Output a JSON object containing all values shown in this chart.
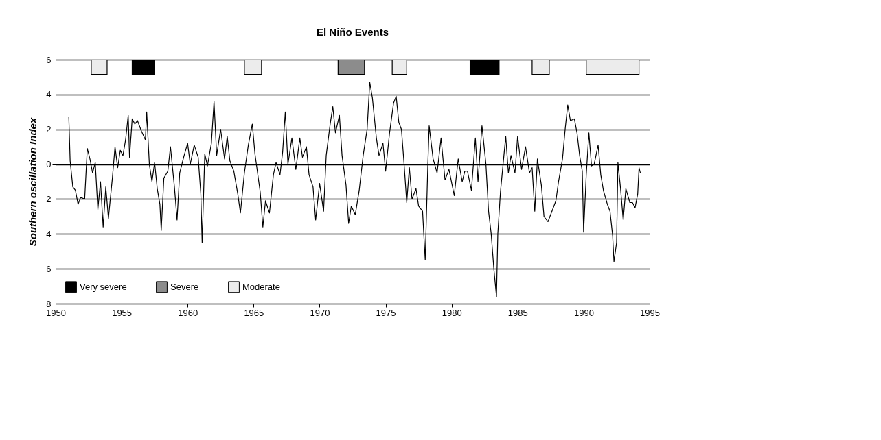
{
  "chart_data": {
    "type": "line",
    "title": "El Niño Events",
    "ylabel": "Southern oscillation Index",
    "xlim": [
      1950,
      1995
    ],
    "xticks": [
      1950,
      1955,
      1960,
      1965,
      1970,
      1975,
      1980,
      1985,
      1990,
      1995
    ],
    "ylim": [
      -8,
      6
    ],
    "yticks": [
      -8,
      -6,
      -4,
      -2,
      0,
      2,
      4,
      6
    ],
    "grid": "y",
    "legend": "bottom left",
    "marker": "none",
    "line_style": "solid",
    "series": [
      {
        "color": "#000000",
        "x": [
          1951.0,
          1951.1,
          1951.3,
          1951.5,
          1951.7,
          1951.9,
          1952.2,
          1952.4,
          1952.6,
          1952.8,
          1953.0,
          1953.2,
          1953.4,
          1953.6,
          1953.8,
          1954.0,
          1954.3,
          1954.5,
          1954.7,
          1954.9,
          1955.1,
          1955.3,
          1955.5,
          1955.6,
          1955.8,
          1956.0,
          1956.2,
          1956.5,
          1956.8,
          1956.9,
          1957.1,
          1957.3,
          1957.5,
          1957.7,
          1957.9,
          1958.0,
          1958.2,
          1958.5,
          1958.7,
          1959.0,
          1959.2,
          1959.4,
          1959.7,
          1960.0,
          1960.2,
          1960.5,
          1960.8,
          1961.0,
          1961.1,
          1961.3,
          1961.5,
          1961.8,
          1962.0,
          1962.2,
          1962.5,
          1962.8,
          1963.0,
          1963.2,
          1963.5,
          1963.8,
          1964.0,
          1964.3,
          1964.6,
          1964.9,
          1965.1,
          1965.3,
          1965.5,
          1965.7,
          1965.9,
          1966.2,
          1966.5,
          1966.7,
          1967.0,
          1967.2,
          1967.4,
          1967.6,
          1967.9,
          1968.2,
          1968.5,
          1968.7,
          1969.0,
          1969.2,
          1969.5,
          1969.7,
          1970.0,
          1970.3,
          1970.5,
          1970.8,
          1971.0,
          1971.2,
          1971.5,
          1971.7,
          1972.0,
          1972.2,
          1972.4,
          1972.7,
          1973.0,
          1973.3,
          1973.6,
          1973.8,
          1974.0,
          1974.3,
          1974.5,
          1974.8,
          1975.0,
          1975.3,
          1975.6,
          1975.8,
          1976.0,
          1976.2,
          1976.4,
          1976.6,
          1976.8,
          1977.0,
          1977.3,
          1977.5,
          1977.8,
          1978.0,
          1978.2,
          1978.3,
          1978.6,
          1978.9,
          1979.2,
          1979.5,
          1979.8,
          1980.2,
          1980.5,
          1980.8,
          1981.0,
          1981.2,
          1981.5,
          1981.8,
          1982.0,
          1982.3,
          1982.6,
          1982.8,
          1983.0,
          1983.2,
          1983.4,
          1983.5,
          1983.7,
          1983.9,
          1984.1,
          1984.3,
          1984.5,
          1984.8,
          1985.0,
          1985.3,
          1985.6,
          1985.9,
          1986.1,
          1986.3,
          1986.5,
          1986.8,
          1987.0,
          1987.3,
          1987.6,
          1987.9,
          1988.1,
          1988.4,
          1988.6,
          1988.8,
          1989.0,
          1989.3,
          1989.5,
          1989.7,
          1989.9,
          1990.0,
          1990.2,
          1990.4,
          1990.6,
          1990.8,
          1991.1,
          1991.3,
          1991.5,
          1991.8,
          1992.0,
          1992.2,
          1992.3,
          1992.5,
          1992.6,
          1992.8,
          1993.0,
          1993.2,
          1993.5,
          1993.7,
          1993.9,
          1994.1,
          1994.2,
          1994.3
        ],
        "values": [
          2.7,
          0.2,
          -1.3,
          -1.5,
          -2.3,
          -1.9,
          -2.0,
          0.9,
          0.3,
          -0.5,
          0.1,
          -2.6,
          -1.0,
          -3.6,
          -1.3,
          -3.1,
          -0.8,
          1.0,
          -0.2,
          0.8,
          0.5,
          1.4,
          2.8,
          0.4,
          2.6,
          2.3,
          2.5,
          1.9,
          1.4,
          3.0,
          0.0,
          -1.0,
          0.1,
          -1.4,
          -2.3,
          -3.8,
          -0.8,
          -0.4,
          1.0,
          -1.3,
          -3.2,
          -0.5,
          0.4,
          1.2,
          0.0,
          1.1,
          0.4,
          -1.7,
          -4.5,
          0.6,
          -0.1,
          1.2,
          3.6,
          0.5,
          2.0,
          0.3,
          1.6,
          0.2,
          -0.4,
          -1.7,
          -2.8,
          -0.5,
          1.1,
          2.3,
          0.6,
          -0.5,
          -1.6,
          -3.6,
          -2.1,
          -2.8,
          -0.6,
          0.1,
          -0.6,
          0.7,
          3.0,
          0.0,
          1.5,
          -0.3,
          1.5,
          0.4,
          1.0,
          -0.6,
          -1.3,
          -3.2,
          -1.1,
          -2.7,
          0.5,
          2.3,
          3.3,
          1.8,
          2.8,
          0.5,
          -1.2,
          -3.4,
          -2.4,
          -2.9,
          -1.5,
          0.5,
          2.0,
          4.7,
          3.8,
          1.5,
          0.5,
          1.2,
          -0.4,
          1.8,
          3.5,
          3.9,
          2.4,
          2.0,
          0.0,
          -2.2,
          -0.2,
          -2.0,
          -1.4,
          -2.4,
          -2.7,
          -5.5,
          0.0,
          2.2,
          0.3,
          -0.5,
          1.5,
          -0.9,
          -0.3,
          -1.8,
          0.3,
          -1.0,
          -0.4,
          -0.4,
          -1.5,
          1.5,
          -1.0,
          2.2,
          0.0,
          -2.7,
          -4.0,
          -6.0,
          -7.6,
          -4.0,
          -1.6,
          0.0,
          1.6,
          -0.5,
          0.5,
          -0.5,
          1.6,
          -0.3,
          1.0,
          -0.5,
          -0.2,
          -2.7,
          0.3,
          -1.2,
          -3.0,
          -3.3,
          -2.7,
          -2.1,
          -1.0,
          0.3,
          2.0,
          3.4,
          2.5,
          2.6,
          1.8,
          0.5,
          -0.4,
          -3.9,
          -0.6,
          1.8,
          -0.1,
          0.0,
          1.1,
          -0.6,
          -1.5,
          -2.3,
          -2.7,
          -4.1,
          -5.6,
          -4.5,
          0.1,
          -1.4,
          -3.2,
          -1.4,
          -2.2,
          -2.2,
          -2.5,
          -1.7,
          -0.2,
          -0.5
        ]
      }
    ],
    "bands": [
      {
        "axis": "x",
        "from": 1955.8,
        "to": 1957.5,
        "label": "Very severe",
        "color": "#000000"
      },
      {
        "axis": "x",
        "from": 1981.4,
        "to": 1983.6,
        "color": "#000000"
      },
      {
        "axis": "x",
        "from": 1971.4,
        "to": 1973.4,
        "label": "Severe",
        "color": "#8c8c8c"
      },
      {
        "axis": "x",
        "from": 1952.7,
        "to": 1953.9,
        "label": "Moderate",
        "color": "#ececec"
      },
      {
        "axis": "x",
        "from": 1964.3,
        "to": 1965.6,
        "color": "#ececec"
      },
      {
        "axis": "x",
        "from": 1975.5,
        "to": 1976.6,
        "color": "#ececec"
      },
      {
        "axis": "x",
        "from": 1986.1,
        "to": 1987.4,
        "color": "#ececec"
      },
      {
        "axis": "x",
        "from": 1990.2,
        "to": 1994.2,
        "color": "#ececec"
      }
    ]
  }
}
